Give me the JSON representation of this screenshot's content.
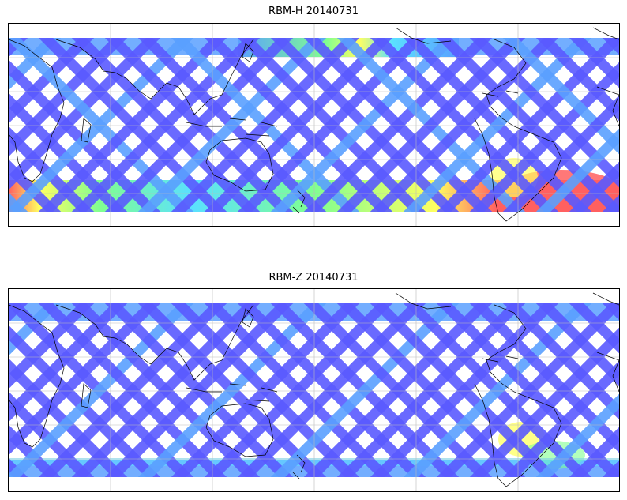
{
  "panels": [
    {
      "title": "RBM-H 20140731",
      "hot_regions": [
        "southern-high-latitudes",
        "south-atlantic",
        "north-pacific"
      ]
    },
    {
      "title": "RBM-Z 20140731",
      "hot_regions": [
        "south-atlantic"
      ]
    }
  ],
  "colormap": [
    "#5a5aff",
    "#5aa0ff",
    "#5ae0ff",
    "#80ff90",
    "#ffff60",
    "#ffb060",
    "#ff6060"
  ],
  "map": {
    "projection": "plate-carree",
    "central_longitude": 180,
    "gridlines": true,
    "coastlines": true
  }
}
